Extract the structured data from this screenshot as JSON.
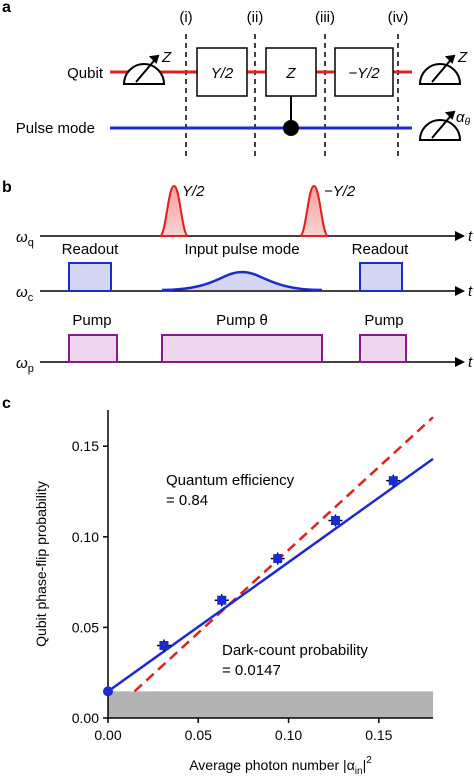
{
  "panel_a": {
    "label": "a",
    "steps": [
      "(i)",
      "(ii)",
      "(iii)",
      "(iv)"
    ],
    "qubit_label": "Qubit",
    "pulse_label": "Pulse mode",
    "meas_left": "Z",
    "meas_right": "Z",
    "meas_pulse_sym": "α",
    "meas_pulse_sub": "θ",
    "gate1": "Y/2",
    "gate2": "Z",
    "gate3": "−Y/2",
    "colors": {
      "qubit": "#e0201a",
      "pulse": "#1a2bd1"
    }
  },
  "panel_b": {
    "label": "b",
    "rows": [
      {
        "sym": "ω",
        "sub": "q",
        "t": "t"
      },
      {
        "sym": "ω",
        "sub": "c",
        "t": "t"
      },
      {
        "sym": "ω",
        "sub": "p",
        "t": "t"
      }
    ],
    "pulse_labels": [
      "Y/2",
      "−Y/2"
    ],
    "readout_left": "Readout",
    "input_mode": "Input pulse mode",
    "readout_right": "Readout",
    "pump_left": "Pump",
    "pump_mid": "Pump θ",
    "pump_right": "Pump",
    "colors": {
      "qubit": "#e0201a",
      "cavity": "#1a2bd1",
      "pump": "#8a1a8c"
    }
  },
  "chart_data": {
    "label": "c",
    "type": "scatter",
    "ylabel": "Qubit phase-flip probability",
    "xlabel_pre": "Average photon number |α",
    "xlabel_sub": "in",
    "xlabel_post": "|",
    "xlabel_sup": "2",
    "xlim": [
      0,
      0.18
    ],
    "ylim": [
      0,
      0.17
    ],
    "xticks": [
      "0.00",
      "0.05",
      "0.10",
      "0.15"
    ],
    "xtick_values": [
      0,
      0.05,
      0.1,
      0.15
    ],
    "yticks": [
      "0.00",
      "0.05",
      "0.10",
      "0.15"
    ],
    "ytick_values": [
      0,
      0.05,
      0.1,
      0.15
    ],
    "points": {
      "x": [
        0.0,
        0.031,
        0.063,
        0.094,
        0.126,
        0.158
      ],
      "y": [
        0.0147,
        0.04,
        0.065,
        0.088,
        0.109,
        0.131
      ]
    },
    "fit_line": {
      "x": [
        0,
        0.18
      ],
      "y": [
        0.0147,
        0.143
      ]
    },
    "efficiency_line": {
      "x": [
        0.0147,
        0.18
      ],
      "y": [
        0.0147,
        0.166
      ]
    },
    "dark_band": {
      "y": 0.0147
    },
    "annotation_efficiency": [
      "Quantum efficiency",
      "= 0.84"
    ],
    "annotation_dark": [
      "Dark-count probability",
      "= 0.0147"
    ],
    "colors": {
      "points": "#1a2bd1",
      "fit": "#1a2bd1",
      "efficiency": "#e0201a",
      "band": "#b3b3b3"
    }
  }
}
